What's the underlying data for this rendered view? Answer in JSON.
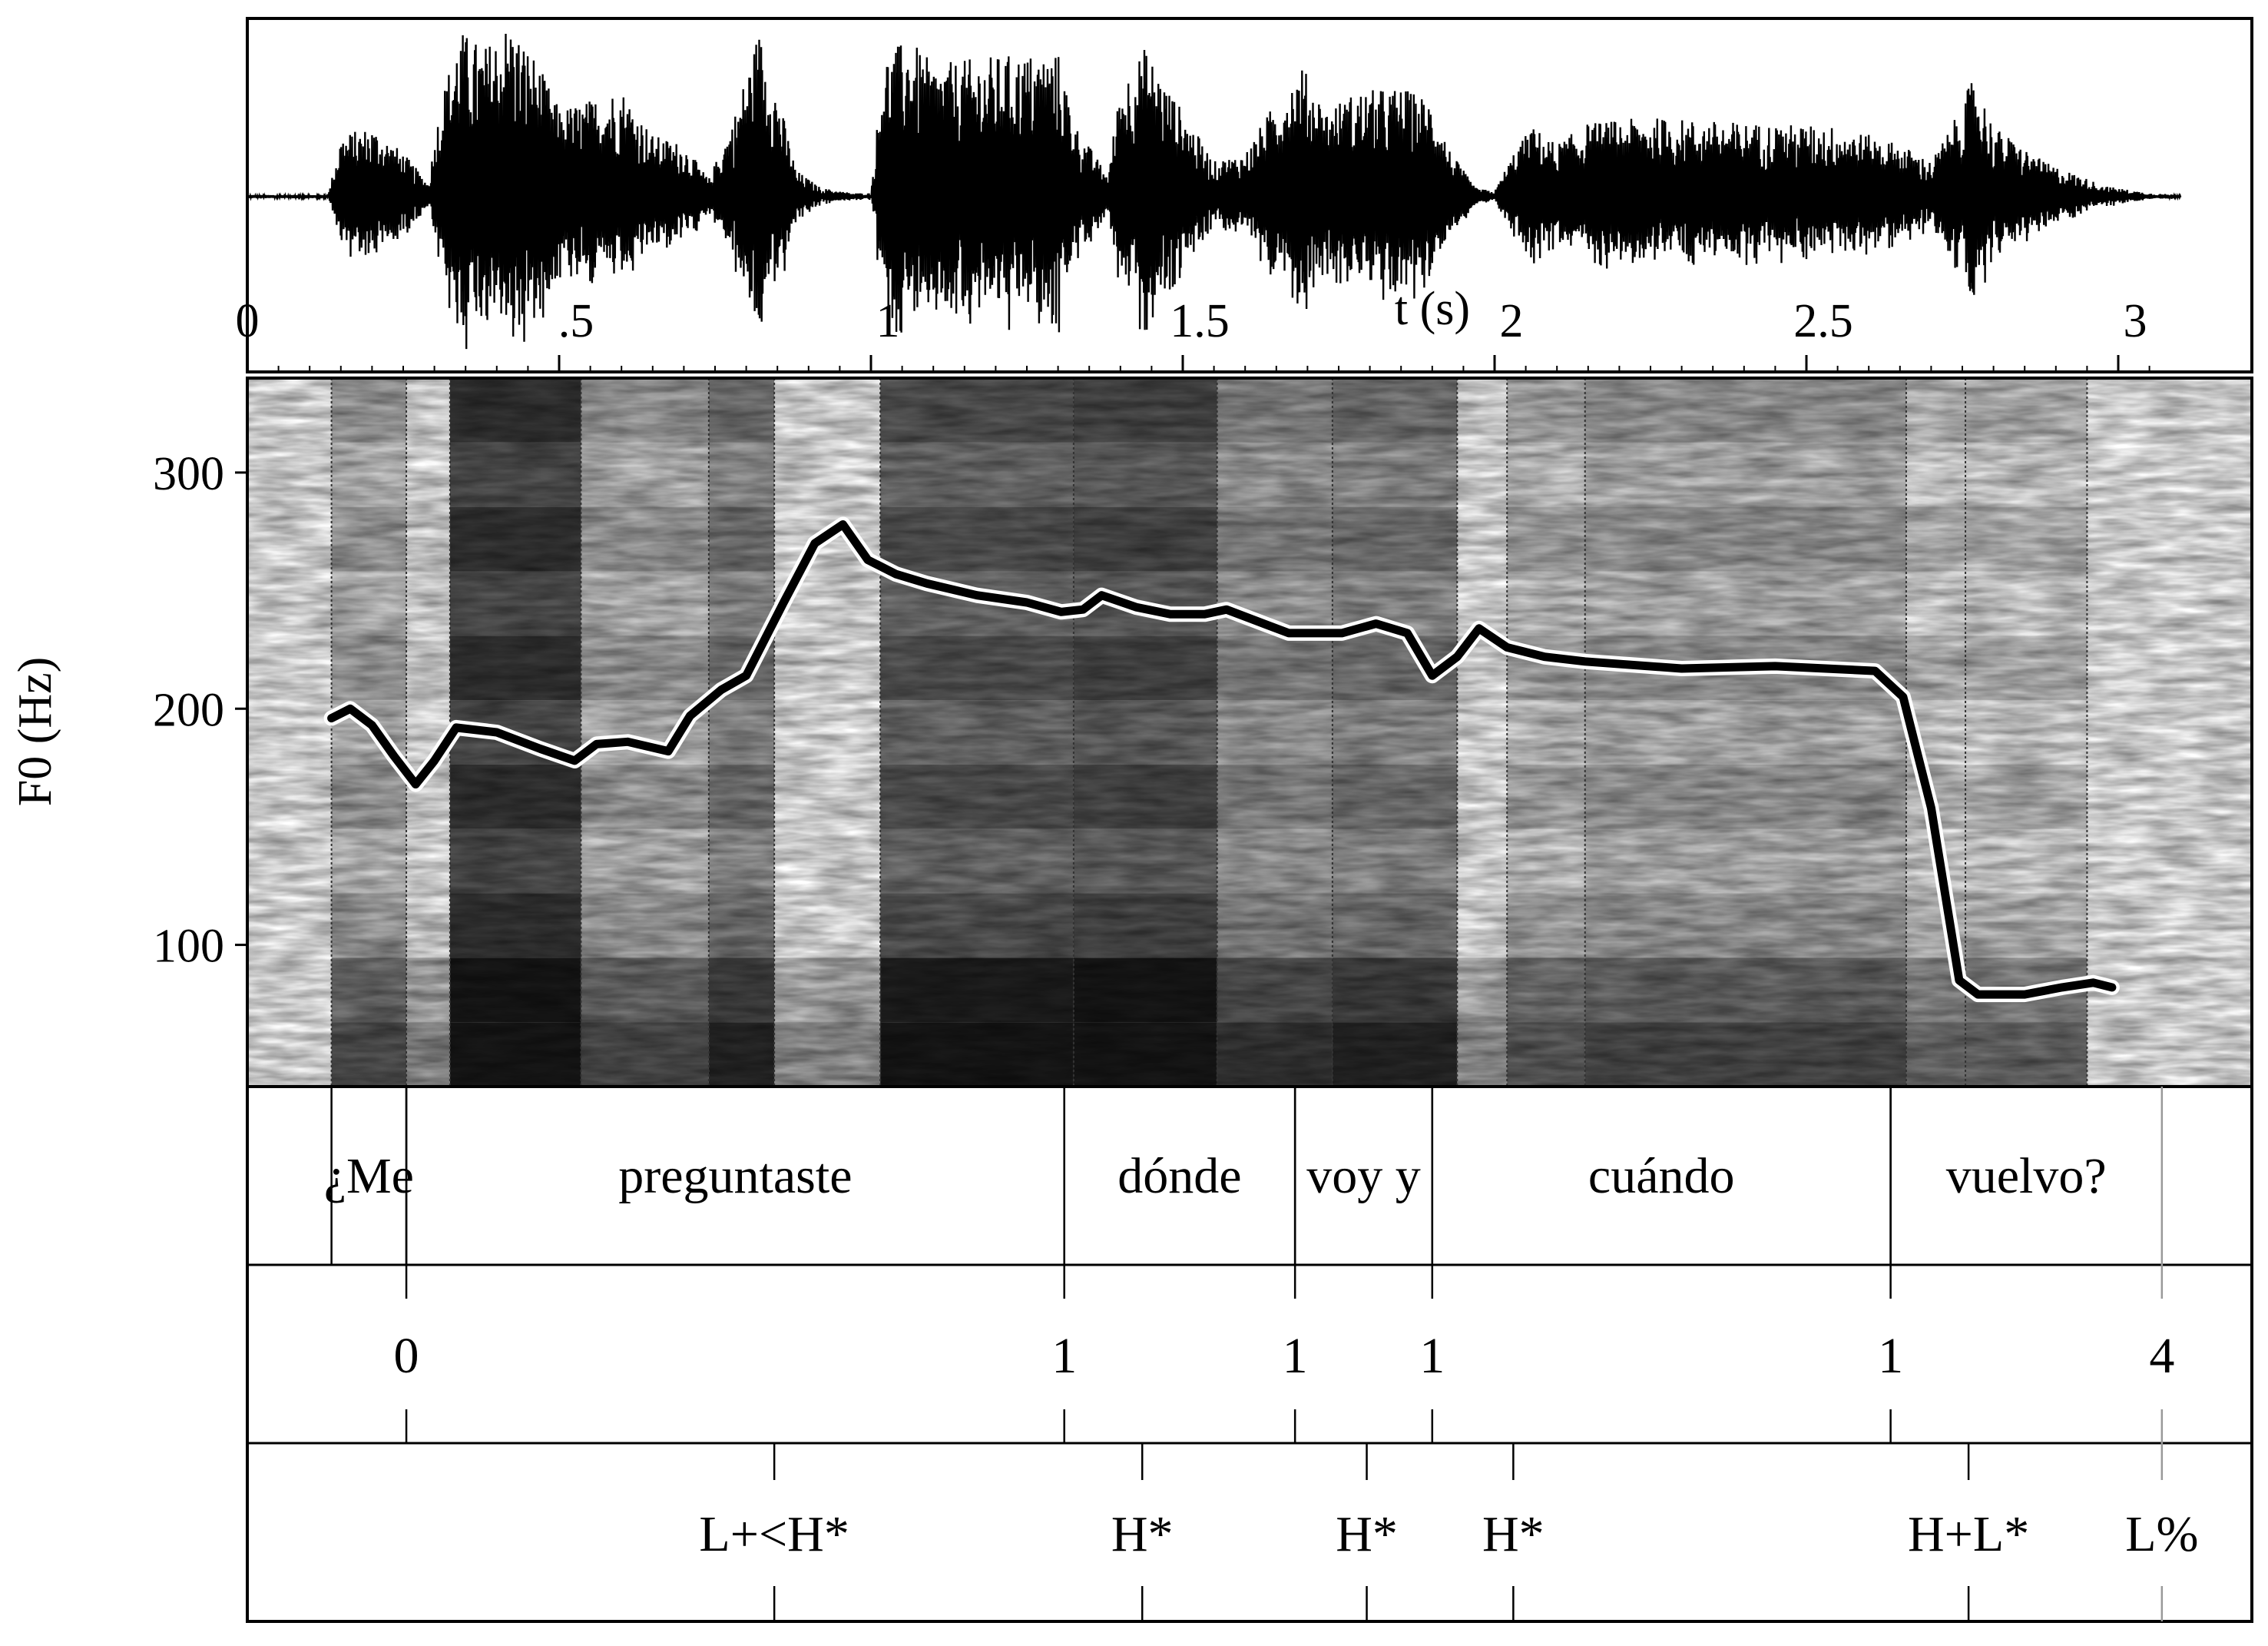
{
  "waveform": {
    "x_axis_label": "t (s)",
    "x_ticks": [
      "0",
      ".5",
      "1",
      "1.5",
      "2",
      "2.5",
      "3"
    ],
    "duration_s": 3.1,
    "envelope": [
      [
        0.0,
        0.01
      ],
      [
        0.13,
        0.01
      ],
      [
        0.15,
        0.35
      ],
      [
        0.2,
        0.4
      ],
      [
        0.25,
        0.25
      ],
      [
        0.29,
        0.08
      ],
      [
        0.31,
        0.55
      ],
      [
        0.34,
        0.95
      ],
      [
        0.38,
        0.85
      ],
      [
        0.42,
        1.0
      ],
      [
        0.46,
        0.8
      ],
      [
        0.5,
        0.5
      ],
      [
        0.55,
        0.55
      ],
      [
        0.6,
        0.62
      ],
      [
        0.65,
        0.35
      ],
      [
        0.7,
        0.3
      ],
      [
        0.74,
        0.1
      ],
      [
        0.78,
        0.45
      ],
      [
        0.82,
        0.95
      ],
      [
        0.85,
        0.6
      ],
      [
        0.88,
        0.15
      ],
      [
        0.92,
        0.05
      ],
      [
        0.97,
        0.02
      ],
      [
        1.0,
        0.02
      ],
      [
        1.02,
        0.8
      ],
      [
        1.06,
        0.9
      ],
      [
        1.1,
        0.75
      ],
      [
        1.2,
        0.8
      ],
      [
        1.3,
        0.82
      ],
      [
        1.33,
        0.4
      ],
      [
        1.38,
        0.12
      ],
      [
        1.4,
        0.65
      ],
      [
        1.44,
        0.85
      ],
      [
        1.48,
        0.6
      ],
      [
        1.55,
        0.2
      ],
      [
        1.6,
        0.25
      ],
      [
        1.65,
        0.55
      ],
      [
        1.69,
        0.75
      ],
      [
        1.73,
        0.5
      ],
      [
        1.78,
        0.6
      ],
      [
        1.85,
        0.62
      ],
      [
        1.9,
        0.55
      ],
      [
        1.93,
        0.25
      ],
      [
        1.97,
        0.05
      ],
      [
        2.0,
        0.03
      ],
      [
        2.03,
        0.25
      ],
      [
        2.06,
        0.4
      ],
      [
        2.1,
        0.3
      ],
      [
        2.15,
        0.42
      ],
      [
        2.25,
        0.45
      ],
      [
        2.4,
        0.42
      ],
      [
        2.55,
        0.4
      ],
      [
        2.65,
        0.3
      ],
      [
        2.7,
        0.2
      ],
      [
        2.74,
        0.45
      ],
      [
        2.77,
        0.7
      ],
      [
        2.8,
        0.4
      ],
      [
        2.88,
        0.2
      ],
      [
        2.98,
        0.06
      ],
      [
        3.05,
        0.02
      ],
      [
        3.1,
        0.01
      ]
    ]
  },
  "spectrogram": {
    "y_axis_label": "F0 (Hz)",
    "y_ticks": [
      "100",
      "200",
      "300"
    ],
    "y_range_hz": [
      40,
      340
    ],
    "boundaries_s": [
      0.135,
      0.255,
      0.325,
      0.535,
      0.74,
      0.845,
      1.015,
      1.325,
      1.555,
      1.74,
      1.94,
      2.02,
      2.145,
      2.66,
      2.755,
      2.95
    ]
  },
  "chart_data": {
    "type": "line",
    "series": [
      {
        "values_t_s_hz": [
          [
            0.135,
            196
          ],
          [
            0.165,
            200
          ],
          [
            0.2,
            193
          ],
          [
            0.235,
            180
          ],
          [
            0.27,
            168
          ],
          [
            0.3,
            178
          ],
          [
            0.335,
            192
          ],
          [
            0.4,
            190
          ],
          [
            0.47,
            183
          ],
          [
            0.525,
            178
          ],
          [
            0.56,
            185
          ],
          [
            0.61,
            186
          ],
          [
            0.675,
            182
          ],
          [
            0.71,
            197
          ],
          [
            0.76,
            208
          ],
          [
            0.8,
            214
          ],
          [
            0.86,
            245
          ],
          [
            0.91,
            270
          ],
          [
            0.955,
            278
          ],
          [
            0.995,
            263
          ],
          [
            1.04,
            257
          ],
          [
            1.09,
            253
          ],
          [
            1.17,
            248
          ],
          [
            1.25,
            245
          ],
          [
            1.305,
            241
          ],
          [
            1.34,
            242
          ],
          [
            1.37,
            248
          ],
          [
            1.425,
            243
          ],
          [
            1.48,
            240
          ],
          [
            1.535,
            240
          ],
          [
            1.57,
            242
          ],
          [
            1.61,
            238
          ],
          [
            1.67,
            232
          ],
          [
            1.755,
            232
          ],
          [
            1.81,
            236
          ],
          [
            1.86,
            232
          ],
          [
            1.9,
            214
          ],
          [
            1.94,
            222
          ],
          [
            1.975,
            234
          ],
          [
            2.02,
            226
          ],
          [
            2.08,
            222
          ],
          [
            2.145,
            220
          ],
          [
            2.3,
            217
          ],
          [
            2.45,
            218
          ],
          [
            2.61,
            216
          ],
          [
            2.655,
            205
          ],
          [
            2.7,
            158
          ],
          [
            2.745,
            85
          ],
          [
            2.775,
            79
          ],
          [
            2.85,
            79
          ],
          [
            2.91,
            82
          ],
          [
            2.96,
            84
          ],
          [
            2.99,
            82
          ]
        ]
      }
    ],
    "x_unit": "s",
    "y_unit": "Hz",
    "xlim": [
      0,
      3.1
    ],
    "ylim": [
      40,
      340
    ]
  },
  "tiers": {
    "words": [
      {
        "label": "¿Me",
        "start_s": 0.135,
        "end_s": 0.255
      },
      {
        "label": "preguntaste",
        "start_s": 0.255,
        "end_s": 1.31
      },
      {
        "label": "dónde",
        "start_s": 1.31,
        "end_s": 1.68
      },
      {
        "label": "voy y",
        "start_s": 1.68,
        "end_s": 1.9
      },
      {
        "label": "cuándo",
        "start_s": 1.9,
        "end_s": 2.635
      },
      {
        "label": "vuelvo?",
        "start_s": 2.635,
        "end_s": 3.07
      }
    ],
    "break_indices": [
      {
        "label": "0",
        "t_s": 0.255
      },
      {
        "label": "1",
        "t_s": 1.31
      },
      {
        "label": "1",
        "t_s": 1.68
      },
      {
        "label": "1",
        "t_s": 1.9
      },
      {
        "label": "1",
        "t_s": 2.635
      },
      {
        "label": "4",
        "t_s": 3.07
      }
    ],
    "tones": [
      {
        "label": "L+<H*",
        "t_s": 0.845
      },
      {
        "label": "H*",
        "t_s": 1.435
      },
      {
        "label": "H*",
        "t_s": 1.795
      },
      {
        "label": "H*",
        "t_s": 2.03
      },
      {
        "label": "H+L*",
        "t_s": 2.76
      },
      {
        "label": "L%",
        "t_s": 3.07
      }
    ]
  }
}
